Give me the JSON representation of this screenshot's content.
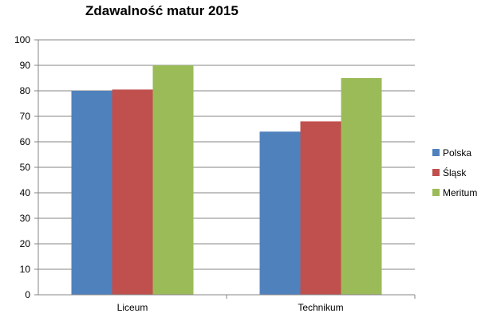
{
  "chart_data": {
    "type": "bar",
    "title": "Zdawalność matur 2015",
    "categories": [
      "Liceum",
      "Technikum"
    ],
    "series": [
      {
        "name": "Polska",
        "values": [
          80,
          64
        ],
        "color": "#4f81bd"
      },
      {
        "name": "Śląsk",
        "values": [
          80.5,
          68
        ],
        "color": "#c0504d"
      },
      {
        "name": "Meritum",
        "values": [
          90,
          85
        ],
        "color": "#9bbb59"
      }
    ],
    "ylim": [
      0,
      100
    ],
    "yticks": [
      0,
      10,
      20,
      30,
      40,
      50,
      60,
      70,
      80,
      90,
      100
    ],
    "xlabel": "",
    "ylabel": "",
    "grid": true,
    "legend": "right"
  }
}
